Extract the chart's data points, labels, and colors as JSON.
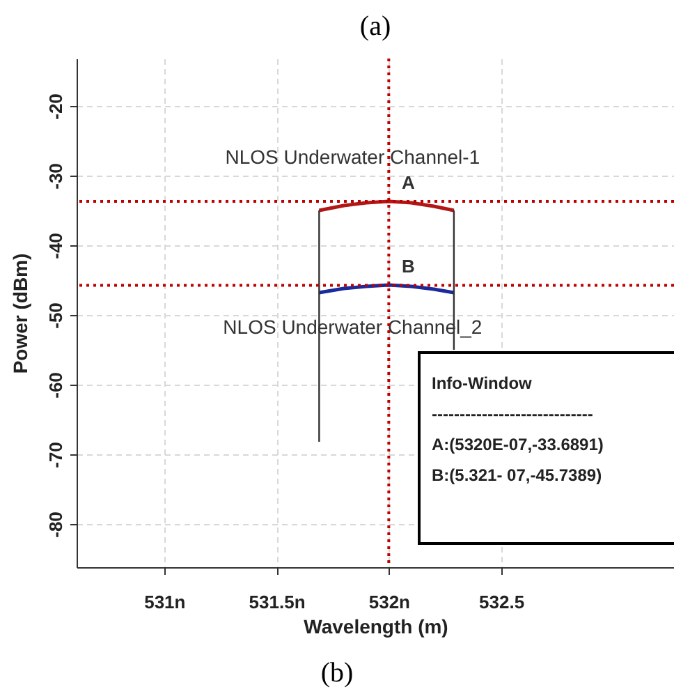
{
  "chart_data": {
    "type": "line",
    "title": "(a)",
    "xlabel": "Wavelength (m)",
    "ylabel": "Power (dBm)",
    "xlim": [
      530.61,
      533.27
    ],
    "xticks": [
      {
        "value": 531,
        "label": "531n"
      },
      {
        "value": 531.5,
        "label": "531.5n"
      },
      {
        "value": 532,
        "label": "532n"
      },
      532.5
    ],
    "ylim": [
      -86.2,
      -13.2
    ],
    "yticks": [
      -80,
      -70,
      -60,
      -50,
      -40,
      -30,
      -20
    ],
    "grid": true,
    "marker": "none",
    "series": [
      {
        "name": "NLOS Underwater Channel-1",
        "color": "#b01818",
        "x": [
          531.69,
          531.8,
          531.9,
          532,
          532.1,
          532.2,
          532.29
        ],
        "values": [
          -35,
          -34.3,
          -33.9,
          -33.7,
          -33.9,
          -34.4,
          -35
        ]
      },
      {
        "name": "NLOS Underwater Channel_2",
        "color": "#1a2a9a",
        "x": [
          531.69,
          531.8,
          531.9,
          532,
          532.1,
          532.2,
          532.29
        ],
        "values": [
          -46.8,
          -46.2,
          -45.9,
          -45.7,
          -45.9,
          -46.3,
          -46.8
        ]
      },
      {
        "color": "#333333",
        "x": [
          531.69,
          531.69,
          531.99,
          532.29,
          532.29
        ],
        "values": [
          -68.2,
          -35,
          null,
          -35,
          -55
        ]
      }
    ],
    "ref_lines": [
      {
        "axis": "y",
        "value": -33.6891,
        "color": "#c00000",
        "line_style": "dotted"
      },
      {
        "axis": "y",
        "value": -45.7389,
        "color": "#c00000",
        "line_style": "dotted"
      },
      {
        "axis": "x",
        "value": 532,
        "color": "#c00000",
        "line_style": "dotted"
      }
    ],
    "annotations": [
      {
        "text": "A",
        "x": 532,
        "y": -33.6891
      },
      {
        "text": "B",
        "x": 532,
        "y": -45.7389
      },
      "Info-Window",
      "-----------------------------",
      "A:(5320E-07,-33.6891)",
      "B:(5.321- 07,-45.7389)",
      "(b)"
    ]
  }
}
